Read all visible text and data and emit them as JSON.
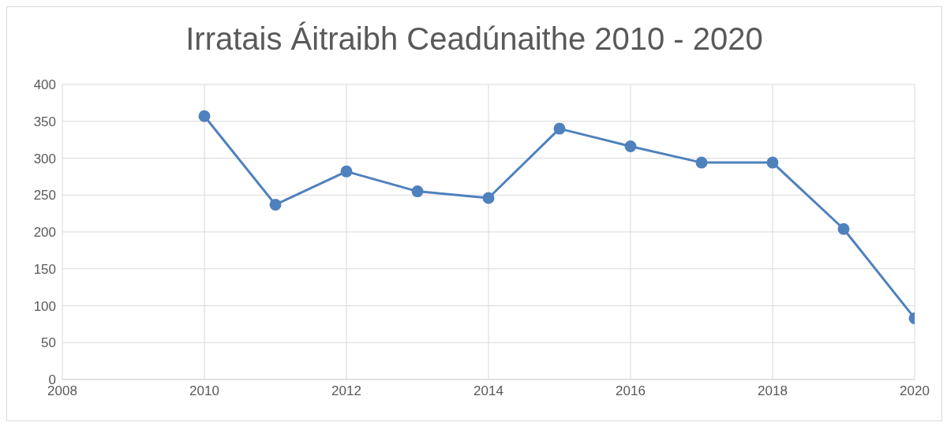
{
  "chart_data": {
    "type": "line",
    "title": "Irratais Áitraibh Ceadúnaithe 2010 - 2020",
    "x": [
      2010,
      2011,
      2012,
      2013,
      2014,
      2015,
      2016,
      2017,
      2018,
      2019,
      2020
    ],
    "series": [
      {
        "color": "#4f81bd",
        "values": [
          357,
          237,
          282,
          255,
          246,
          340,
          316,
          294,
          294,
          204,
          83
        ]
      }
    ],
    "xlim": [
      2008,
      2020
    ],
    "xticks": [
      2008,
      2010,
      2012,
      2014,
      2016,
      2018,
      2020
    ],
    "ylim": [
      0,
      400
    ],
    "yticks": [
      0,
      50,
      100,
      150,
      200,
      250,
      300,
      350,
      400
    ],
    "grid": true,
    "marker": "circle",
    "line_style": "solid",
    "legend": false
  }
}
